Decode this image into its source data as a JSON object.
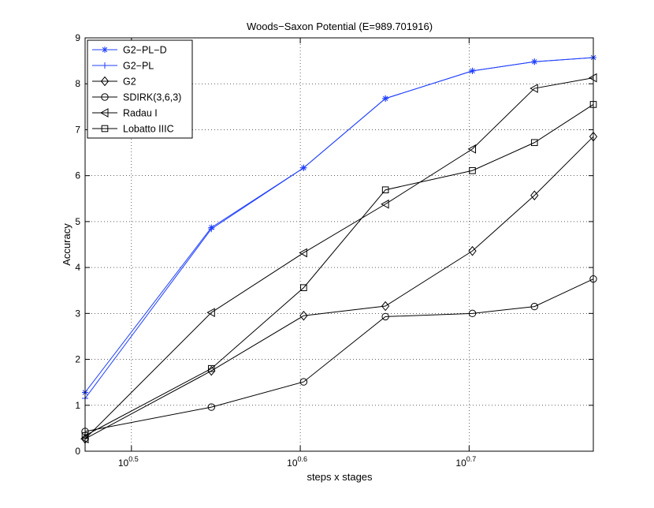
{
  "chart_data": {
    "type": "line",
    "title": "Woods−Saxon Potential (E=989.701916)",
    "xlabel": "steps x stages",
    "ylabel": "Accuracy",
    "x_scale": "log10",
    "xlim": [
      2.9686,
      5.9371
    ],
    "ylim": [
      0,
      9
    ],
    "grid": true,
    "legend_position": "top-left",
    "x_ticks": [
      {
        "value": 3.1623,
        "base": "10",
        "exp": "0.5"
      },
      {
        "value": 3.9811,
        "base": "10",
        "exp": "0.6"
      },
      {
        "value": 5.0119,
        "base": "10",
        "exp": "0.7"
      }
    ],
    "y_ticks": [
      "0",
      "1",
      "2",
      "3",
      "4",
      "5",
      "6",
      "7",
      "8",
      "9"
    ],
    "x": [
      2.9686,
      3.5266,
      3.9994,
      4.4713,
      5.0345,
      5.4789,
      5.9371
    ],
    "series": [
      {
        "name": "G2−PL−D",
        "color": "#1f3fff",
        "marker": "star",
        "values": [
          1.28,
          4.87,
          6.17,
          7.68,
          8.28,
          8.48,
          8.57
        ]
      },
      {
        "name": "G2−PL",
        "color": "#1f3fff",
        "marker": "plus",
        "values": [
          1.15,
          4.84,
          6.17,
          7.68,
          8.28,
          8.48,
          8.57
        ]
      },
      {
        "name": "G2",
        "color": "#000000",
        "marker": "diamond",
        "values": [
          0.27,
          1.75,
          2.95,
          3.16,
          4.36,
          5.57,
          6.85
        ]
      },
      {
        "name": "SDIRK(3,6,3)",
        "color": "#000000",
        "marker": "circle",
        "values": [
          0.43,
          0.96,
          1.51,
          2.93,
          3.0,
          3.15,
          3.75
        ]
      },
      {
        "name": "Radau I",
        "color": "#000000",
        "marker": "triangle-left",
        "values": [
          0.27,
          3.02,
          4.32,
          5.38,
          6.58,
          7.9,
          8.13
        ]
      },
      {
        "name": "Lobatto IIIC",
        "color": "#000000",
        "marker": "square",
        "values": [
          0.34,
          1.8,
          3.56,
          5.69,
          6.11,
          6.72,
          7.55
        ]
      }
    ]
  }
}
